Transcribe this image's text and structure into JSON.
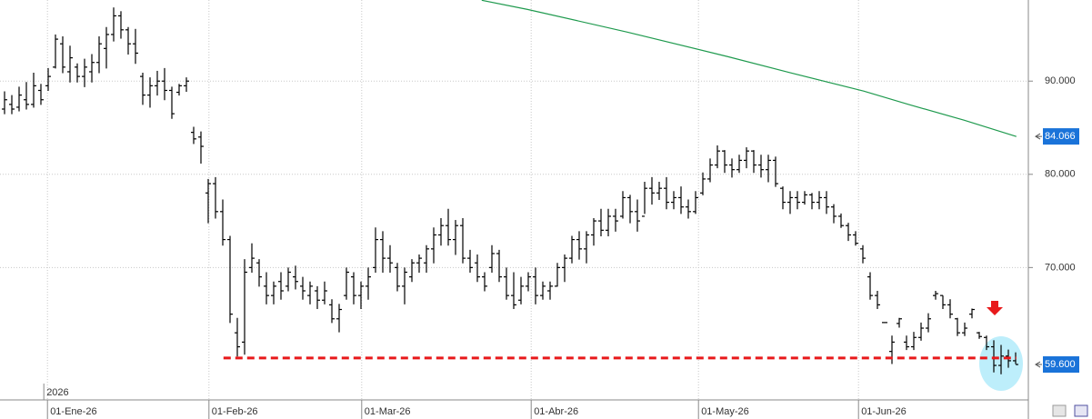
{
  "chart_data": {
    "type": "ohlc",
    "xlim": [
      -0.625,
      140.625
    ],
    "ylim": [
      55.8,
      98.7
    ],
    "grid": true,
    "year_label": "2026",
    "xticks": [
      {
        "value": 5.9,
        "label": "01-Ene-26"
      },
      {
        "value": 28.1,
        "label": "01-Feb-26"
      },
      {
        "value": 49.1,
        "label": "01-Mar-26"
      },
      {
        "value": 72.4,
        "label": "01-Abr-26"
      },
      {
        "value": 95.4,
        "label": "01-May-26"
      },
      {
        "value": 117.4,
        "label": "01-Jun-26"
      }
    ],
    "yticks": [
      {
        "value": 70,
        "label": "70.000"
      },
      {
        "value": 80,
        "label": "80.000"
      },
      {
        "value": 90,
        "label": "90.000"
      }
    ],
    "ohlc": {
      "color": "#000000",
      "open": [
        87.0,
        87.5,
        87.2,
        88.0,
        87.5,
        89.0,
        89.5,
        91.5,
        94.0,
        91.0,
        91.5,
        90.5,
        91.0,
        92.0,
        93.5,
        95.0,
        97.0,
        95.5,
        94.0,
        90.5,
        88.5,
        89.5,
        90.0,
        89.0,
        88.8,
        89.5,
        84.5,
        84.0,
        78.0,
        79.0,
        76.0,
        73.0,
        63.0,
        62.0,
        70.0,
        70.5,
        68.0,
        67.0,
        68.5,
        68.0,
        69.0,
        68.0,
        67.0,
        67.5,
        66.5,
        66.0,
        64.5,
        67.0,
        69.0,
        67.0,
        68.0,
        70.0,
        73.0,
        71.0,
        70.0,
        68.0,
        69.0,
        70.5,
        70.5,
        72.0,
        73.5,
        74.5,
        73.0,
        74.5,
        71.0,
        70.5,
        69.0,
        70.0,
        71.5,
        69.0,
        67.0,
        66.5,
        68.0,
        69.0,
        67.0,
        67.5,
        68.0,
        70.0,
        71.0,
        73.0,
        72.0,
        73.5,
        75.0,
        74.0,
        75.5,
        75.5,
        77.5,
        76.0,
        75.5,
        78.5,
        78.0,
        78.5,
        77.0,
        77.5,
        76.5,
        76.0,
        78.0,
        79.5,
        81.0,
        82.5,
        81.0,
        80.5,
        81.5,
        82.5,
        81.0,
        80.5,
        81.5,
        78.5,
        77.0,
        77.5,
        77.0,
        77.8,
        77.0,
        77.5,
        76.5,
        75.5,
        74.5,
        73.5,
        72.0,
        69.0,
        67.0,
        64.1,
        61.0,
        64.0,
        62.0,
        61.5,
        62.5,
        63.5,
        67.0,
        67.0,
        66.0,
        64.5,
        63.0,
        65.0,
        63.0,
        62.5,
        61.5,
        59.5,
        60.5,
        60.0
      ],
      "high": [
        88.9,
        88.5,
        89.4,
        89.9,
        90.9,
        89.7,
        91.4,
        95.0,
        94.8,
        93.8,
        91.9,
        92.4,
        92.9,
        94.8,
        95.8,
        97.9,
        97.5,
        95.8,
        95.6,
        90.9,
        90.4,
        91.1,
        91.4,
        89.4,
        89.7,
        90.4,
        85.1,
        84.6,
        79.5,
        79.7,
        77.3,
        73.4,
        64.6,
        70.9,
        72.6,
        70.9,
        69.5,
        68.5,
        69.5,
        70.0,
        70.2,
        69.0,
        68.5,
        68.0,
        68.5,
        66.6,
        66.1,
        70.0,
        69.5,
        68.5,
        70.0,
        74.3,
        73.9,
        72.4,
        70.5,
        70.0,
        70.9,
        71.4,
        72.4,
        74.3,
        75.3,
        76.3,
        75.1,
        75.3,
        71.9,
        71.4,
        69.5,
        72.4,
        71.9,
        70.0,
        69.5,
        69.0,
        69.5,
        70.0,
        68.5,
        68.5,
        70.5,
        71.4,
        73.4,
        73.9,
        73.9,
        75.3,
        76.3,
        76.3,
        76.3,
        78.2,
        77.8,
        77.3,
        79.2,
        79.7,
        79.2,
        79.7,
        78.2,
        78.7,
        77.3,
        78.2,
        80.2,
        81.7,
        83.1,
        82.6,
        81.7,
        82.1,
        82.9,
        82.6,
        82.1,
        82.1,
        81.9,
        78.7,
        78.2,
        78.2,
        78.2,
        78.0,
        78.2,
        78.2,
        76.8,
        75.8,
        74.8,
        73.9,
        72.4,
        69.5,
        67.5,
        64.1,
        62.7,
        64.6,
        62.7,
        63.1,
        64.1,
        65.1,
        67.5,
        67.0,
        66.6,
        64.6,
        64.1,
        65.6,
        63.1,
        62.7,
        62.2,
        61.7,
        61.2,
        60.9
      ],
      "low": [
        86.5,
        86.5,
        86.8,
        87.0,
        87.2,
        87.5,
        89.0,
        91.4,
        90.9,
        89.9,
        89.9,
        89.4,
        89.9,
        90.9,
        91.4,
        94.3,
        94.6,
        92.9,
        91.9,
        87.5,
        87.2,
        88.5,
        88.0,
        86.0,
        88.5,
        88.9,
        83.3,
        81.2,
        74.8,
        75.3,
        72.4,
        64.1,
        60.5,
        60.7,
        69.5,
        68.0,
        66.1,
        66.1,
        66.6,
        67.5,
        67.7,
        66.6,
        66.1,
        65.6,
        66.1,
        64.1,
        63.1,
        66.6,
        66.1,
        65.6,
        66.6,
        69.5,
        69.5,
        69.5,
        67.5,
        66.1,
        68.5,
        69.5,
        69.5,
        70.5,
        72.4,
        72.4,
        71.4,
        70.5,
        69.5,
        68.5,
        67.5,
        69.5,
        68.5,
        66.6,
        65.6,
        66.1,
        67.5,
        66.1,
        66.6,
        66.6,
        68.0,
        68.5,
        70.5,
        70.9,
        70.5,
        72.4,
        73.4,
        73.4,
        73.9,
        75.3,
        74.8,
        73.9,
        75.8,
        76.8,
        77.3,
        76.3,
        76.3,
        75.8,
        75.3,
        75.8,
        77.8,
        79.2,
        80.7,
        80.2,
        79.7,
        80.2,
        80.7,
        80.2,
        79.7,
        79.2,
        78.7,
        76.3,
        75.8,
        76.3,
        76.8,
        76.3,
        76.3,
        75.8,
        74.8,
        74.3,
        72.9,
        72.4,
        70.5,
        66.6,
        65.6,
        64.1,
        59.7,
        63.6,
        61.2,
        61.2,
        62.2,
        63.1,
        66.6,
        65.6,
        64.6,
        62.7,
        62.7,
        64.6,
        62.4,
        61.2,
        58.8,
        58.6,
        59.3,
        59.7
      ],
      "close": [
        88.0,
        87.0,
        88.5,
        87.5,
        89.5,
        88.0,
        90.5,
        94.5,
        91.5,
        92.5,
        90.5,
        91.5,
        92.0,
        94.0,
        95.0,
        97.0,
        95.5,
        94.0,
        93.0,
        88.5,
        89.5,
        90.0,
        89.0,
        86.5,
        89.5,
        90.0,
        83.8,
        83.0,
        79.0,
        76.0,
        73.0,
        65.0,
        61.5,
        69.5,
        71.0,
        69.0,
        67.0,
        68.0,
        67.5,
        69.5,
        68.5,
        67.5,
        68.0,
        66.5,
        67.5,
        64.5,
        65.5,
        69.5,
        67.0,
        68.0,
        69.0,
        73.0,
        71.0,
        70.5,
        68.0,
        69.5,
        70.5,
        71.0,
        72.0,
        73.5,
        74.5,
        73.0,
        74.5,
        71.0,
        70.0,
        69.0,
        68.0,
        71.5,
        69.0,
        67.0,
        66.0,
        68.0,
        69.0,
        67.0,
        68.0,
        68.0,
        70.0,
        71.0,
        73.0,
        72.0,
        73.5,
        75.0,
        74.0,
        75.5,
        75.0,
        77.5,
        76.0,
        75.0,
        78.5,
        78.0,
        78.5,
        77.0,
        77.5,
        76.5,
        76.0,
        77.5,
        79.5,
        81.0,
        82.5,
        81.0,
        80.5,
        81.5,
        82.5,
        81.0,
        80.5,
        81.5,
        79.0,
        77.0,
        77.5,
        77.0,
        77.8,
        77.0,
        77.5,
        76.5,
        75.5,
        74.5,
        73.5,
        72.6,
        71.0,
        67.0,
        66.0,
        64.1,
        62.0,
        64.5,
        61.5,
        62.5,
        63.5,
        64.5,
        67.2,
        66.0,
        65.0,
        63.0,
        63.5,
        65.5,
        62.6,
        61.5,
        59.5,
        60.5,
        60.0,
        59.6
      ]
    },
    "moving_average": {
      "color": "#1f9a4e",
      "x": [
        65.6,
        71.9,
        85.6,
        99.4,
        108.1,
        118.1,
        124.4,
        131.9,
        139.1
      ],
      "values": [
        98.67,
        97.69,
        95.26,
        92.63,
        90.88,
        88.93,
        87.47,
        85.81,
        84.06
      ]
    },
    "support_line": {
      "color": "#e8191b",
      "value": 60.3,
      "x": [
        30.1,
        139.1
      ]
    },
    "price_labels": [
      {
        "value": 84.066,
        "label": "84.066"
      },
      {
        "value": 59.6,
        "label": "59.600"
      }
    ]
  }
}
